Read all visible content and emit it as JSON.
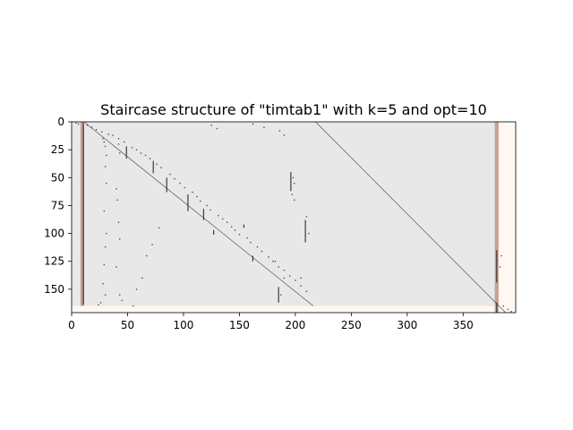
{
  "chart_data": {
    "type": "heatmap",
    "title": "Staircase structure of \"timtab1\" with k=5 and opt=10",
    "xlabel": "",
    "ylabel": "",
    "xlim": [
      0,
      397
    ],
    "ylim": [
      171,
      0
    ],
    "xticks": [
      0,
      50,
      100,
      150,
      200,
      250,
      300,
      350
    ],
    "yticks": [
      0,
      25,
      50,
      75,
      100,
      125,
      150
    ],
    "grid": false,
    "colors": {
      "background_region": "#e8e8e8",
      "outside_region": "#fff8f2",
      "nonzero": "#3a3a3a",
      "highlight_column": "#c9a08e",
      "diagonal": "#444444"
    },
    "regions": [
      {
        "name": "staircase-block",
        "x": [
          0,
          380
        ],
        "y": [
          0,
          165
        ],
        "color": "#e8e8e8"
      }
    ],
    "highlight_columns": [
      {
        "x": 9.5,
        "width": 3.2,
        "y": [
          0,
          165
        ]
      },
      {
        "x": 380.0,
        "width": 3.4,
        "y": [
          0,
          171
        ]
      }
    ],
    "diagonals": [
      {
        "x": [
          11,
          216
        ],
        "y": [
          0,
          165
        ]
      },
      {
        "x": [
          218,
          388
        ],
        "y": [
          0,
          171
        ]
      }
    ],
    "nonzero_segments": [
      {
        "x": 10.5,
        "y": [
          1,
          164
        ]
      },
      {
        "x": 49,
        "y": [
          22,
          33
        ]
      },
      {
        "x": 73,
        "y": [
          35,
          46
        ]
      },
      {
        "x": 85,
        "y": [
          50,
          63
        ]
      },
      {
        "x": 104,
        "y": [
          65,
          80
        ]
      },
      {
        "x": 118,
        "y": [
          78,
          88
        ]
      },
      {
        "x": 127,
        "y": [
          97,
          101
        ]
      },
      {
        "x": 154,
        "y": [
          92,
          95
        ]
      },
      {
        "x": 162,
        "y": [
          120,
          125
        ]
      },
      {
        "x": 185,
        "y": [
          148,
          162
        ]
      },
      {
        "x": 196,
        "y": [
          45,
          62
        ]
      },
      {
        "x": 209,
        "y": [
          88,
          108
        ]
      },
      {
        "x": 380,
        "y": [
          115,
          144
        ]
      },
      {
        "x": 380,
        "y": [
          162,
          171
        ]
      }
    ],
    "nonzero_points": [
      [
        4,
        1
      ],
      [
        6,
        2
      ],
      [
        14,
        3
      ],
      [
        18,
        5
      ],
      [
        22,
        7
      ],
      [
        27,
        9
      ],
      [
        33,
        11
      ],
      [
        37,
        12
      ],
      [
        42,
        15
      ],
      [
        47,
        18
      ],
      [
        54,
        23
      ],
      [
        58,
        25
      ],
      [
        62,
        28
      ],
      [
        66,
        30
      ],
      [
        70,
        33
      ],
      [
        76,
        38
      ],
      [
        80,
        41
      ],
      [
        88,
        47
      ],
      [
        92,
        51
      ],
      [
        97,
        55
      ],
      [
        101,
        59
      ],
      [
        108,
        63
      ],
      [
        112,
        67
      ],
      [
        115,
        71
      ],
      [
        121,
        75
      ],
      [
        124,
        79
      ],
      [
        131,
        84
      ],
      [
        135,
        87
      ],
      [
        139,
        90
      ],
      [
        143,
        94
      ],
      [
        146,
        97
      ],
      [
        150,
        101
      ],
      [
        157,
        104
      ],
      [
        160,
        108
      ],
      [
        166,
        112
      ],
      [
        170,
        116
      ],
      [
        176,
        121
      ],
      [
        180,
        125
      ],
      [
        190,
        133
      ],
      [
        195,
        138
      ],
      [
        200,
        142
      ],
      [
        205,
        147
      ],
      [
        210,
        152
      ],
      [
        28,
        15
      ],
      [
        29,
        18
      ],
      [
        30,
        22
      ],
      [
        31,
        30
      ],
      [
        30,
        40
      ],
      [
        31,
        55
      ],
      [
        29,
        80
      ],
      [
        31,
        100
      ],
      [
        30,
        112
      ],
      [
        29,
        128
      ],
      [
        28,
        145
      ],
      [
        30,
        155
      ],
      [
        26,
        162
      ],
      [
        24,
        164
      ],
      [
        42,
        20
      ],
      [
        43,
        28
      ],
      [
        40,
        60
      ],
      [
        41,
        70
      ],
      [
        42,
        90
      ],
      [
        43,
        105
      ],
      [
        40,
        130
      ],
      [
        43,
        155
      ],
      [
        45,
        160
      ],
      [
        55,
        165
      ],
      [
        58,
        150
      ],
      [
        63,
        140
      ],
      [
        67,
        120
      ],
      [
        72,
        110
      ],
      [
        78,
        95
      ],
      [
        125,
        3
      ],
      [
        130,
        6
      ],
      [
        162,
        2
      ],
      [
        172,
        5
      ],
      [
        186,
        8
      ],
      [
        190,
        12
      ],
      [
        198,
        50
      ],
      [
        199,
        55
      ],
      [
        197,
        65
      ],
      [
        199,
        70
      ],
      [
        210,
        85
      ],
      [
        212,
        100
      ],
      [
        182,
        125
      ],
      [
        185,
        130
      ],
      [
        190,
        140
      ],
      [
        187,
        155
      ],
      [
        205,
        140
      ],
      [
        384,
        120
      ],
      [
        383,
        130
      ],
      [
        386,
        165
      ],
      [
        390,
        168
      ],
      [
        393,
        170
      ]
    ]
  }
}
